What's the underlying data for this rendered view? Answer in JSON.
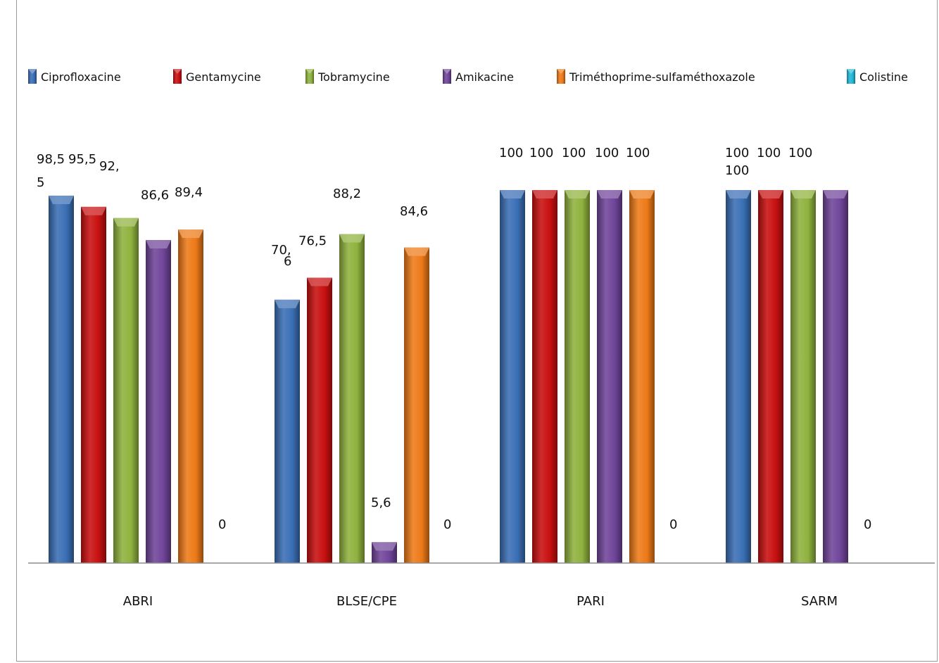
{
  "chart_data": {
    "type": "bar",
    "title": "",
    "xlabel": "",
    "ylabel": "",
    "ylim": [
      0,
      100
    ],
    "grid": false,
    "legend_position": "top",
    "categories": [
      "ABRI",
      "BLSE/CPE",
      "PARI",
      "SARM"
    ],
    "series": [
      {
        "name": "Ciprofloxacine",
        "color": "#3a6fb5",
        "values": [
          98.5,
          70.6,
          100,
          100
        ],
        "labels": [
          "98,5",
          "70,6",
          "100",
          "100"
        ]
      },
      {
        "name": "Gentamycine",
        "color": "#c81010",
        "values": [
          95.5,
          76.5,
          100,
          100
        ],
        "labels": [
          "95,5",
          "76,5",
          "100",
          "100"
        ]
      },
      {
        "name": "Tobramycine",
        "color": "#8fb23e",
        "values": [
          92.5,
          88.2,
          100,
          100
        ],
        "labels": [
          "92,5",
          "88,2",
          "100",
          "100"
        ]
      },
      {
        "name": "Amikacine",
        "color": "#70459a",
        "values": [
          86.6,
          5.6,
          100,
          100
        ],
        "labels": [
          "86,6",
          "5,6",
          "100",
          "100"
        ]
      },
      {
        "name": "Triméthoprime-sulfaméthoxazole",
        "color": "#ee7a18",
        "values": [
          89.4,
          84.6,
          100,
          null
        ],
        "labels": [
          "89,4",
          "84,6",
          "100",
          ""
        ]
      },
      {
        "name": "Colistine",
        "color": "#22b8d8",
        "values": [
          0,
          0,
          0,
          0
        ],
        "labels": [
          "0",
          "0",
          "0",
          "0"
        ]
      }
    ]
  }
}
